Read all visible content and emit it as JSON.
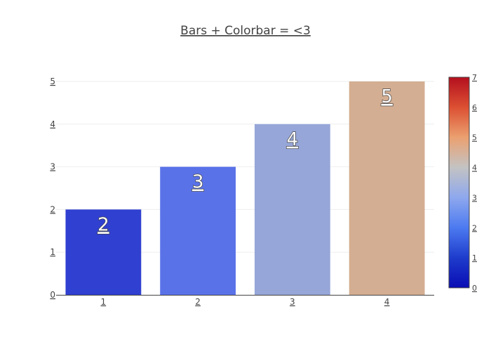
{
  "chart_data": {
    "type": "bar",
    "title": "Bars + Colorbar = <3",
    "xlabel": "",
    "ylabel": "",
    "categories": [
      "1",
      "2",
      "3",
      "4"
    ],
    "values": [
      2,
      3,
      4,
      5
    ],
    "text_labels": [
      "2",
      "3",
      "4",
      "5"
    ],
    "bar_colors": [
      "#3040D0",
      "#5A72E8",
      "#96A6D8",
      "#D4AE92"
    ],
    "ylim": [
      0,
      5
    ],
    "y_ticks": [
      "0",
      "1",
      "2",
      "3",
      "4",
      "5"
    ],
    "grid": true,
    "legend": "none",
    "colorbar": {
      "colorscale": "RdBu-style (blue to red)",
      "range": [
        0,
        7
      ],
      "ticks": [
        "0",
        "1",
        "2",
        "3",
        "4",
        "5",
        "6",
        "7"
      ],
      "placement": "right",
      "colors": [
        "#0A0DB4",
        "#1E3CCC",
        "#4C7AF0",
        "#8EA8EE",
        "#C3C3C3",
        "#EBA070",
        "#DC5032",
        "#B40F1E"
      ]
    }
  }
}
